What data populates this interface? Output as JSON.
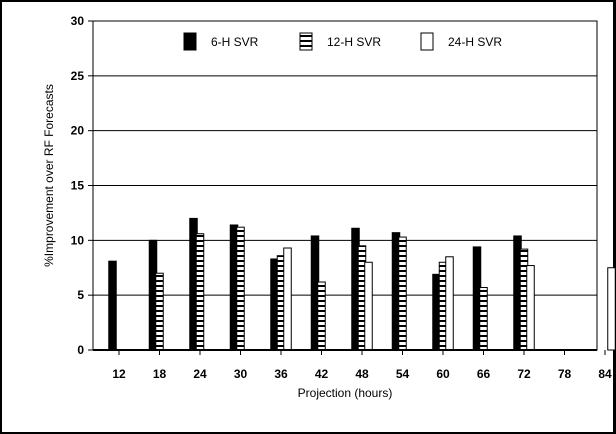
{
  "chart_data": {
    "type": "bar",
    "title": "",
    "xlabel": "Projection (hours)",
    "ylabel": "%Improvement over RF Forecasts",
    "categories": [
      "12",
      "18",
      "24",
      "30",
      "36",
      "42",
      "48",
      "54",
      "60",
      "66",
      "72",
      "78",
      "84"
    ],
    "ylim": [
      0,
      30
    ],
    "yticks": [
      0,
      5,
      10,
      15,
      20,
      25,
      30
    ],
    "grid": "horizontal",
    "legend_position": "top",
    "series": [
      {
        "name": "6-H SVR",
        "pattern": "solid",
        "color": "#000000",
        "values": [
          8.1,
          10.0,
          12.0,
          11.4,
          8.3,
          10.4,
          11.1,
          10.7,
          6.9,
          9.4,
          10.4,
          null,
          null
        ]
      },
      {
        "name": "12-H SVR",
        "pattern": "striped",
        "color": "#000000",
        "values": [
          null,
          7.0,
          10.6,
          11.2,
          8.6,
          6.2,
          9.5,
          10.3,
          8.0,
          5.7,
          9.2,
          null,
          null
        ]
      },
      {
        "name": "24-H SVR",
        "pattern": "open",
        "color": "#ffffff",
        "values": [
          null,
          null,
          null,
          null,
          9.3,
          null,
          8.0,
          null,
          8.5,
          null,
          7.7,
          null,
          7.5
        ]
      }
    ]
  }
}
